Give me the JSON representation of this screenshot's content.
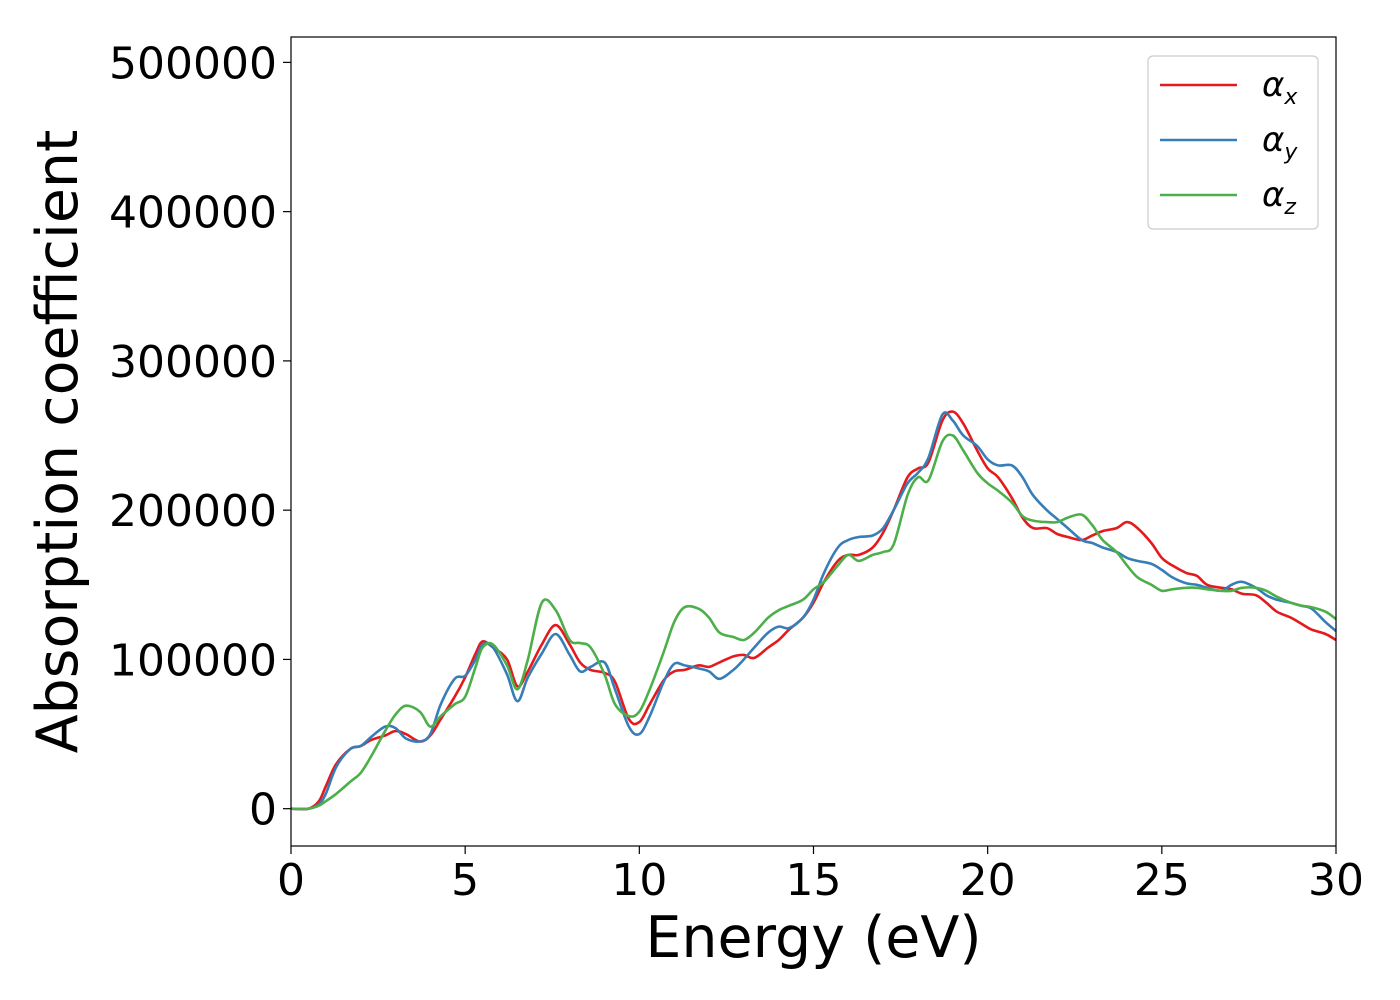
{
  "chart_data": {
    "type": "line",
    "title": "",
    "xlabel": "Energy (eV)",
    "ylabel": "Absorption coefficient",
    "xlim": [
      0,
      30
    ],
    "ylim": [
      -25000,
      517000
    ],
    "xticks": [
      0,
      5,
      10,
      15,
      20,
      25,
      30
    ],
    "xtick_labels": [
      "0",
      "5",
      "10",
      "15",
      "20",
      "25",
      "30"
    ],
    "yticks": [
      0,
      100000,
      200000,
      300000,
      400000,
      500000
    ],
    "ytick_labels": [
      "0",
      "100000",
      "200000",
      "300000",
      "400000",
      "500000"
    ],
    "grid": false,
    "legend_position": "top-right",
    "series": [
      {
        "name": "α_x",
        "legend_symbol": "α",
        "legend_subscript": "x",
        "color": "#e41a1c",
        "x": [
          0,
          0.5,
          0.8,
          1,
          1.3,
          1.7,
          2,
          2.3,
          2.7,
          3,
          3.3,
          3.7,
          4,
          4.3,
          4.7,
          5,
          5.3,
          5.5,
          5.8,
          6.2,
          6.5,
          6.8,
          7.2,
          7.6,
          8,
          8.3,
          8.6,
          9,
          9.3,
          9.7,
          10,
          10.3,
          10.7,
          11,
          11.3,
          11.7,
          12,
          12.3,
          12.7,
          13,
          13.3,
          13.7,
          14,
          14.3,
          14.7,
          15,
          15.3,
          15.7,
          16,
          16.3,
          16.7,
          17,
          17.3,
          17.7,
          18,
          18.3,
          18.7,
          19,
          19.3,
          19.7,
          20,
          20.3,
          20.7,
          21,
          21.3,
          21.7,
          22,
          22.3,
          22.7,
          23,
          23.3,
          23.7,
          24,
          24.3,
          24.7,
          25,
          25.3,
          25.7,
          26,
          26.3,
          26.7,
          27,
          27.3,
          27.7,
          28,
          28.3,
          28.7,
          29,
          29.3,
          29.7,
          30
        ],
        "values": [
          0,
          0,
          5000,
          15000,
          30000,
          40000,
          42000,
          46000,
          49000,
          52000,
          50000,
          45000,
          49000,
          60000,
          75000,
          88000,
          104000,
          112000,
          108000,
          100000,
          82000,
          92000,
          110000,
          123000,
          110000,
          98000,
          93000,
          91000,
          85000,
          60000,
          58000,
          70000,
          86000,
          92000,
          93000,
          96000,
          95000,
          98000,
          102000,
          103000,
          101000,
          108000,
          113000,
          120000,
          128000,
          138000,
          152000,
          166000,
          170000,
          170000,
          175000,
          185000,
          200000,
          222000,
          228000,
          232000,
          260000,
          266000,
          258000,
          240000,
          228000,
          222000,
          208000,
          195000,
          188000,
          188000,
          184000,
          182000,
          180000,
          183000,
          186000,
          188000,
          192000,
          188000,
          178000,
          168000,
          163000,
          158000,
          156000,
          150000,
          148000,
          147000,
          144000,
          143000,
          138000,
          132000,
          128000,
          124000,
          120000,
          117000,
          113000
        ]
      },
      {
        "name": "α_y",
        "legend_symbol": "α",
        "legend_subscript": "y",
        "color": "#377eb8",
        "x": [
          0,
          0.5,
          0.8,
          1,
          1.3,
          1.7,
          2,
          2.3,
          2.7,
          3,
          3.3,
          3.7,
          4,
          4.3,
          4.7,
          5,
          5.3,
          5.5,
          5.8,
          6.2,
          6.5,
          6.8,
          7.2,
          7.6,
          8,
          8.3,
          8.6,
          9,
          9.3,
          9.7,
          10,
          10.3,
          10.7,
          11,
          11.3,
          11.7,
          12,
          12.3,
          12.7,
          13,
          13.3,
          13.7,
          14,
          14.3,
          14.7,
          15,
          15.3,
          15.7,
          16,
          16.3,
          16.7,
          17,
          17.3,
          17.7,
          18,
          18.3,
          18.7,
          19,
          19.3,
          19.7,
          20,
          20.3,
          20.7,
          21,
          21.3,
          21.7,
          22,
          22.3,
          22.7,
          23,
          23.3,
          23.7,
          24,
          24.3,
          24.7,
          25,
          25.3,
          25.7,
          26,
          26.3,
          26.7,
          27,
          27.3,
          27.7,
          28,
          28.3,
          28.7,
          29,
          29.3,
          29.7,
          30
        ],
        "values": [
          0,
          0,
          3000,
          10000,
          28000,
          40000,
          42000,
          48000,
          55000,
          54000,
          47000,
          45000,
          50000,
          70000,
          87000,
          89000,
          100000,
          110000,
          108000,
          90000,
          72000,
          88000,
          104000,
          117000,
          103000,
          92000,
          95000,
          98000,
          80000,
          55000,
          50000,
          62000,
          85000,
          97000,
          96000,
          94000,
          92000,
          87000,
          93000,
          100000,
          108000,
          118000,
          122000,
          121000,
          128000,
          140000,
          158000,
          175000,
          180000,
          182000,
          183000,
          188000,
          200000,
          218000,
          225000,
          235000,
          264000,
          260000,
          250000,
          243000,
          234000,
          230000,
          230000,
          222000,
          210000,
          200000,
          194000,
          188000,
          180000,
          178000,
          175000,
          172000,
          168000,
          166000,
          164000,
          160000,
          155000,
          151000,
          150000,
          148000,
          146000,
          150000,
          152000,
          148000,
          143000,
          140000,
          138000,
          136000,
          134000,
          125000,
          119000
        ]
      },
      {
        "name": "α_z",
        "legend_symbol": "α",
        "legend_subscript": "z",
        "color": "#4daf4a",
        "x": [
          0,
          0.5,
          0.8,
          1,
          1.3,
          1.7,
          2,
          2.3,
          2.7,
          3,
          3.3,
          3.7,
          4,
          4.3,
          4.7,
          5,
          5.3,
          5.5,
          5.8,
          6.2,
          6.5,
          6.8,
          7.2,
          7.6,
          8,
          8.3,
          8.6,
          9,
          9.3,
          9.7,
          10,
          10.3,
          10.7,
          11,
          11.3,
          11.7,
          12,
          12.3,
          12.7,
          13,
          13.3,
          13.7,
          14,
          14.3,
          14.7,
          15,
          15.3,
          15.7,
          16,
          16.3,
          16.7,
          17,
          17.3,
          17.7,
          18,
          18.3,
          18.7,
          19,
          19.3,
          19.7,
          20,
          20.3,
          20.7,
          21,
          21.3,
          21.7,
          22,
          22.3,
          22.7,
          23,
          23.3,
          23.7,
          24,
          24.3,
          24.7,
          25,
          25.3,
          25.7,
          26,
          26.3,
          26.7,
          27,
          27.3,
          27.7,
          28,
          28.3,
          28.7,
          29,
          29.3,
          29.7,
          30
        ],
        "values": [
          0,
          0,
          2000,
          5000,
          10000,
          18000,
          24000,
          35000,
          52000,
          63000,
          69000,
          65000,
          55000,
          62000,
          70000,
          75000,
          95000,
          108000,
          110000,
          96000,
          80000,
          100000,
          138000,
          133000,
          113000,
          111000,
          108000,
          90000,
          70000,
          62000,
          65000,
          80000,
          105000,
          125000,
          135000,
          134000,
          128000,
          118000,
          115000,
          113000,
          118000,
          128000,
          133000,
          136000,
          140000,
          147000,
          152000,
          163000,
          170000,
          166000,
          170000,
          172000,
          177000,
          210000,
          222000,
          220000,
          246000,
          250000,
          240000,
          225000,
          218000,
          213000,
          205000,
          196000,
          193000,
          192000,
          192000,
          195000,
          197000,
          190000,
          180000,
          172000,
          163000,
          155000,
          150000,
          146000,
          147000,
          148000,
          148000,
          147000,
          146000,
          146000,
          148000,
          148000,
          146000,
          142000,
          138000,
          136000,
          135000,
          132000,
          127000
        ]
      }
    ]
  }
}
